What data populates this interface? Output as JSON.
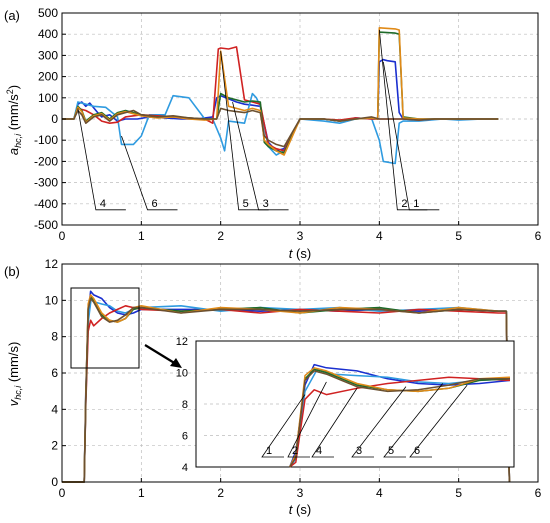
{
  "chart_data": [
    {
      "panel_label": "(a)",
      "type": "line",
      "xlabel_italic": "t",
      "xlabel_unit": " (s)",
      "ylabel_main": "a",
      "ylabel_sub": "hc,i",
      "ylabel_unit": " (mm/s",
      "ylabel_sup": "2",
      "ylabel_close": ")",
      "xlim": [
        0,
        6
      ],
      "ylim": [
        -500,
        500
      ],
      "xticks": [
        "0",
        "1",
        "2",
        "3",
        "4",
        "5",
        "6"
      ],
      "yticks": [
        "-500",
        "-400",
        "-300",
        "-200",
        "-100",
        "0",
        "100",
        "200",
        "300",
        "400",
        "500"
      ],
      "grid": true,
      "callouts": [
        {
          "label": "4",
          "x": 0.2,
          "y": 50
        },
        {
          "label": "6",
          "x": 0.75,
          "y": -80
        },
        {
          "label": "5",
          "x": 2.0,
          "y": 320
        },
        {
          "label": "3",
          "x": 2.15,
          "y": 80
        },
        {
          "label": "2",
          "x": 4.0,
          "y": 420
        },
        {
          "label": "1",
          "x": 4.05,
          "y": 270
        }
      ],
      "series": [
        {
          "label": "1",
          "color": "#1a2fcf",
          "x": [
            0,
            0.15,
            0.2,
            0.25,
            0.3,
            0.35,
            0.45,
            0.5,
            0.6,
            0.7,
            0.8,
            0.95,
            1.1,
            1.3,
            1.5,
            1.7,
            1.9,
            1.95,
            2.0,
            2.1,
            2.2,
            2.3,
            2.4,
            2.5,
            2.6,
            2.7,
            2.8,
            3.0,
            3.3,
            3.5,
            3.7,
            3.9,
            3.98,
            4.0,
            4.05,
            4.1,
            4.2,
            4.25,
            4.3,
            4.5,
            4.7,
            5.0,
            5.3,
            5.5
          ],
          "y": [
            0,
            0,
            70,
            80,
            60,
            75,
            30,
            10,
            20,
            -10,
            0,
            0,
            10,
            5,
            0,
            0,
            10,
            100,
            110,
            95,
            80,
            70,
            65,
            60,
            -110,
            -150,
            -140,
            0,
            0,
            -10,
            5,
            0,
            0,
            270,
            280,
            275,
            270,
            30,
            0,
            0,
            0,
            0,
            0,
            0
          ]
        },
        {
          "label": "2",
          "color": "#2f9be0",
          "x": [
            0,
            0.15,
            0.2,
            0.3,
            0.4,
            0.55,
            0.7,
            0.75,
            0.9,
            1.0,
            1.1,
            1.3,
            1.4,
            1.6,
            1.8,
            1.9,
            2.0,
            2.05,
            2.1,
            2.3,
            2.4,
            2.45,
            2.5,
            2.6,
            2.7,
            2.8,
            3.0,
            3.3,
            3.5,
            3.7,
            3.9,
            4.0,
            4.05,
            4.2,
            4.25,
            4.3,
            4.5,
            4.8,
            5.0,
            5.3,
            5.5
          ],
          "y": [
            0,
            0,
            80,
            70,
            60,
            55,
            10,
            -120,
            -120,
            -80,
            20,
            20,
            110,
            100,
            0,
            0,
            -90,
            -150,
            -10,
            -20,
            120,
            100,
            60,
            -130,
            -170,
            -150,
            0,
            -10,
            -20,
            0,
            5,
            -100,
            -200,
            -210,
            -20,
            -10,
            -10,
            0,
            -5,
            0,
            0
          ]
        },
        {
          "label": "3",
          "color": "#d02222",
          "x": [
            0,
            0.15,
            0.2,
            0.3,
            0.4,
            0.5,
            0.6,
            0.7,
            0.8,
            1.0,
            1.2,
            1.4,
            1.6,
            1.8,
            1.9,
            1.97,
            2.0,
            2.1,
            2.2,
            2.3,
            2.4,
            2.5,
            2.6,
            2.7,
            2.8,
            3.0,
            3.3,
            3.5,
            3.7,
            3.9,
            4.0,
            4.2,
            4.3,
            4.5,
            4.7,
            5.0,
            5.5
          ],
          "y": [
            0,
            0,
            50,
            40,
            20,
            -10,
            -20,
            -15,
            10,
            20,
            15,
            10,
            5,
            0,
            -20,
            330,
            335,
            330,
            340,
            90,
            80,
            70,
            -120,
            -140,
            -150,
            0,
            0,
            -5,
            5,
            0,
            0,
            0,
            0,
            -5,
            0,
            0,
            0
          ]
        },
        {
          "label": "4",
          "color": "#1f6b2a",
          "x": [
            0,
            0.15,
            0.2,
            0.25,
            0.3,
            0.4,
            0.5,
            0.6,
            0.7,
            0.8,
            1.0,
            1.2,
            1.4,
            1.6,
            1.8,
            1.95,
            2.0,
            2.1,
            2.3,
            2.4,
            2.5,
            2.55,
            2.6,
            2.7,
            2.8,
            3.0,
            3.3,
            3.5,
            3.7,
            3.9,
            3.98,
            4.0,
            4.2,
            4.25,
            4.3,
            4.5,
            4.7,
            5.0,
            5.3,
            5.5
          ],
          "y": [
            0,
            0,
            60,
            40,
            -10,
            20,
            30,
            0,
            30,
            40,
            20,
            10,
            10,
            5,
            0,
            0,
            120,
            100,
            80,
            85,
            80,
            -110,
            -130,
            -150,
            -160,
            0,
            0,
            -10,
            0,
            5,
            0,
            410,
            405,
            400,
            10,
            0,
            0,
            0,
            0,
            0
          ]
        },
        {
          "label": "5",
          "color": "#e08a18",
          "x": [
            0,
            0.15,
            0.2,
            0.25,
            0.3,
            0.4,
            0.5,
            0.6,
            0.7,
            0.8,
            1.0,
            1.2,
            1.4,
            1.6,
            1.8,
            1.95,
            2.0,
            2.1,
            2.2,
            2.3,
            2.4,
            2.5,
            2.55,
            2.6,
            2.7,
            2.8,
            3.0,
            3.3,
            3.5,
            3.7,
            3.9,
            3.98,
            4.0,
            4.2,
            4.25,
            4.3,
            4.5,
            4.7,
            5.0,
            5.3,
            5.5
          ],
          "y": [
            0,
            0,
            55,
            35,
            -15,
            15,
            25,
            -5,
            25,
            35,
            15,
            5,
            10,
            0,
            -5,
            0,
            320,
            60,
            50,
            40,
            50,
            40,
            -100,
            -120,
            -150,
            -170,
            0,
            0,
            -10,
            0,
            5,
            0,
            430,
            425,
            420,
            5,
            0,
            0,
            0,
            0,
            0
          ]
        },
        {
          "label": "6",
          "color": "#6b5030",
          "x": [
            0,
            0.15,
            0.2,
            0.25,
            0.3,
            0.4,
            0.5,
            0.6,
            0.7,
            0.8,
            0.9,
            1.0,
            1.2,
            1.4,
            1.6,
            1.8,
            1.95,
            2.0,
            2.1,
            2.2,
            2.3,
            2.4,
            2.5,
            2.55,
            2.6,
            2.7,
            2.8,
            3.0,
            3.3,
            3.5,
            3.7,
            3.9,
            4.0,
            4.2,
            4.3,
            4.5,
            4.7,
            5.0,
            5.3,
            5.5
          ],
          "y": [
            0,
            0,
            40,
            20,
            -20,
            10,
            20,
            -10,
            20,
            30,
            40,
            20,
            10,
            15,
            5,
            0,
            0,
            50,
            40,
            35,
            30,
            40,
            30,
            -80,
            -100,
            -120,
            -130,
            0,
            0,
            -10,
            0,
            10,
            0,
            0,
            0,
            -5,
            0,
            0,
            0,
            0
          ]
        }
      ]
    },
    {
      "panel_label": "(b)",
      "type": "line",
      "xlabel_italic": "t",
      "xlabel_unit": " (s)",
      "ylabel_main": "v",
      "ylabel_sub": "hc,i",
      "ylabel_unit": " (mm/s)",
      "xlim": [
        0,
        6
      ],
      "ylim": [
        0,
        12
      ],
      "xticks": [
        "0",
        "1",
        "2",
        "3",
        "4",
        "5",
        "6"
      ],
      "yticks": [
        "0",
        "2",
        "4",
        "6",
        "8",
        "10",
        "12"
      ],
      "grid": true,
      "inset": {
        "xlim": [
          0,
          1
        ],
        "ylim": [
          4,
          12
        ],
        "yticks": [
          "4",
          "6",
          "8",
          "10",
          "12"
        ],
        "callouts": [
          "1",
          "2",
          "4",
          "3",
          "5",
          "6"
        ]
      },
      "series": [
        {
          "label": "1",
          "color": "#1a2fcf",
          "x": [
            0,
            0.28,
            0.3,
            0.33,
            0.36,
            0.4,
            0.5,
            0.6,
            0.7,
            0.8,
            0.9,
            1.0,
            1.5,
            2.0,
            2.5,
            3.0,
            3.5,
            4.0,
            4.5,
            5.0,
            5.5,
            5.6,
            5.62,
            5.64
          ],
          "y": [
            0,
            0,
            5,
            9.2,
            10.5,
            10.3,
            10.1,
            9.6,
            9.3,
            9.2,
            9.3,
            9.5,
            9.5,
            9.5,
            9.4,
            9.5,
            9.4,
            9.5,
            9.4,
            9.5,
            9.4,
            9.4,
            4,
            0
          ]
        },
        {
          "label": "2",
          "color": "#2f9be0",
          "x": [
            0,
            0.28,
            0.3,
            0.33,
            0.37,
            0.42,
            0.5,
            0.6,
            0.7,
            0.8,
            0.9,
            1.0,
            1.5,
            2.0,
            2.5,
            3.0,
            3.5,
            4.0,
            4.5,
            5.0,
            5.5,
            5.6,
            5.62,
            5.64
          ],
          "y": [
            0,
            0,
            4.5,
            8.8,
            10.2,
            9.9,
            9.8,
            9.7,
            9.4,
            9.3,
            9.5,
            9.6,
            9.7,
            9.4,
            9.6,
            9.5,
            9.6,
            9.4,
            9.5,
            9.6,
            9.4,
            9.4,
            4,
            0
          ]
        },
        {
          "label": "3",
          "color": "#d02222",
          "x": [
            0,
            0.28,
            0.3,
            0.33,
            0.36,
            0.4,
            0.5,
            0.6,
            0.7,
            0.8,
            0.9,
            1.0,
            1.5,
            2.0,
            2.5,
            3.0,
            3.5,
            4.0,
            4.5,
            5.0,
            5.5,
            5.6,
            5.62,
            5.64
          ],
          "y": [
            0,
            0,
            4.3,
            8.3,
            8.9,
            8.6,
            9.0,
            9.3,
            9.5,
            9.7,
            9.6,
            9.5,
            9.4,
            9.5,
            9.3,
            9.5,
            9.4,
            9.3,
            9.5,
            9.4,
            9.3,
            9.3,
            4,
            0
          ]
        },
        {
          "label": "4",
          "color": "#1f6b2a",
          "x": [
            0,
            0.28,
            0.3,
            0.33,
            0.36,
            0.4,
            0.45,
            0.5,
            0.6,
            0.7,
            0.8,
            0.9,
            1.0,
            1.5,
            2.0,
            2.5,
            3.0,
            3.5,
            4.0,
            4.5,
            5.0,
            5.5,
            5.6,
            5.62,
            5.64
          ],
          "y": [
            0,
            0,
            4.7,
            9.6,
            10.2,
            10.0,
            9.6,
            9.2,
            8.9,
            8.8,
            9.0,
            9.5,
            9.6,
            9.4,
            9.5,
            9.6,
            9.3,
            9.5,
            9.6,
            9.3,
            9.5,
            9.4,
            9.4,
            4,
            0
          ]
        },
        {
          "label": "5",
          "color": "#e08a18",
          "x": [
            0,
            0.28,
            0.3,
            0.33,
            0.36,
            0.4,
            0.45,
            0.5,
            0.6,
            0.7,
            0.8,
            0.9,
            1.0,
            1.5,
            2.0,
            2.5,
            3.0,
            3.5,
            4.0,
            4.5,
            5.0,
            5.5,
            5.6,
            5.62,
            5.64
          ],
          "y": [
            0,
            0,
            4.8,
            9.8,
            10.3,
            10.1,
            9.7,
            9.3,
            8.9,
            8.8,
            9.0,
            9.6,
            9.7,
            9.3,
            9.6,
            9.5,
            9.3,
            9.6,
            9.5,
            9.3,
            9.6,
            9.4,
            9.4,
            4,
            0
          ]
        },
        {
          "label": "6",
          "color": "#6b5030",
          "x": [
            0,
            0.28,
            0.3,
            0.33,
            0.36,
            0.4,
            0.45,
            0.5,
            0.6,
            0.7,
            0.8,
            0.9,
            1.0,
            1.5,
            2.0,
            2.5,
            3.0,
            3.5,
            4.0,
            4.5,
            5.0,
            5.5,
            5.6,
            5.62,
            5.64
          ],
          "y": [
            0,
            0,
            4.6,
            9.5,
            10.1,
            9.9,
            9.5,
            9.1,
            8.8,
            8.9,
            9.2,
            9.6,
            9.6,
            9.3,
            9.5,
            9.5,
            9.4,
            9.5,
            9.5,
            9.3,
            9.5,
            9.4,
            9.4,
            4,
            0
          ]
        }
      ]
    }
  ]
}
